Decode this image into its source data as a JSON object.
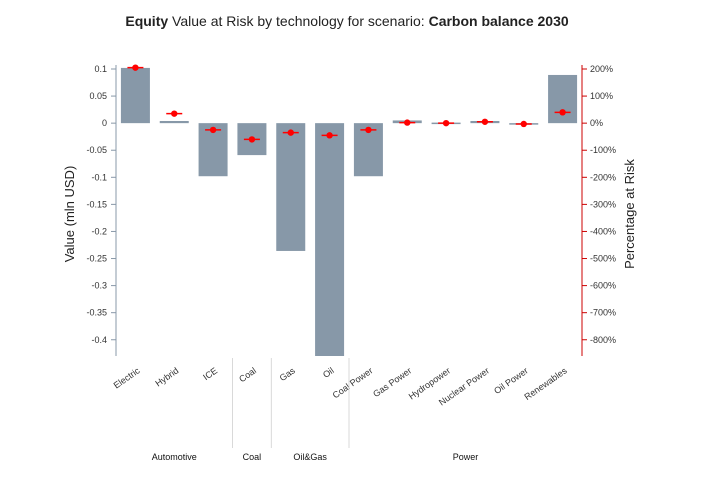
{
  "chart_data": {
    "type": "bar",
    "title_bold_1": "Equity",
    "title_mid": " Value at Risk by technology for scenario: ",
    "title_bold_2": "Carbon balance 2030",
    "ylabel": "Value (mln USD)",
    "y2label": "Percentage at Risk",
    "ylim": [
      -0.43,
      0.1
    ],
    "y2lim": [
      -860,
      200
    ],
    "yticks": [
      "0.1",
      "0.05",
      "0",
      "-0.05",
      "-0.1",
      "-0.15",
      "-0.2",
      "-0.25",
      "-0.3",
      "-0.35",
      "-0.4"
    ],
    "ytick_values": [
      0.1,
      0.05,
      0,
      -0.05,
      -0.1,
      -0.15,
      -0.2,
      -0.25,
      -0.3,
      -0.35,
      -0.4
    ],
    "y2ticks": [
      "200%",
      "100%",
      "0%",
      "-100%",
      "-200%",
      "-300%",
      "-400%",
      "-500%",
      "-600%",
      "-700%",
      "-800%"
    ],
    "y2tick_values": [
      200,
      100,
      0,
      -100,
      -200,
      -300,
      -400,
      -500,
      -600,
      -700,
      -800
    ],
    "categories": [
      "Electric",
      "Hybrid",
      "ICE",
      "Coal",
      "Gas",
      "Oil",
      "Coal Power",
      "Gas Power",
      "Hydropower",
      "Nuclear Power",
      "Oil Power",
      "Renewables"
    ],
    "values": [
      0.102,
      0.004,
      -0.098,
      -0.059,
      -0.236,
      -0.43,
      -0.098,
      0.005,
      0.001,
      0.004,
      -0.001,
      0.089
    ],
    "percent_at_risk": [
      205,
      35,
      -25,
      -60,
      -35,
      -45,
      -25,
      2,
      0,
      5,
      -3,
      40
    ],
    "groups": [
      {
        "name": "Automotive",
        "count": 3
      },
      {
        "name": "Coal",
        "count": 1
      },
      {
        "name": "Oil&Gas",
        "count": 2
      },
      {
        "name": "Power",
        "count": 6
      }
    ],
    "bar_color": "#8798a8",
    "marker_color": "#ff0000",
    "axis2_color": "#cc0000",
    "grid": false
  }
}
